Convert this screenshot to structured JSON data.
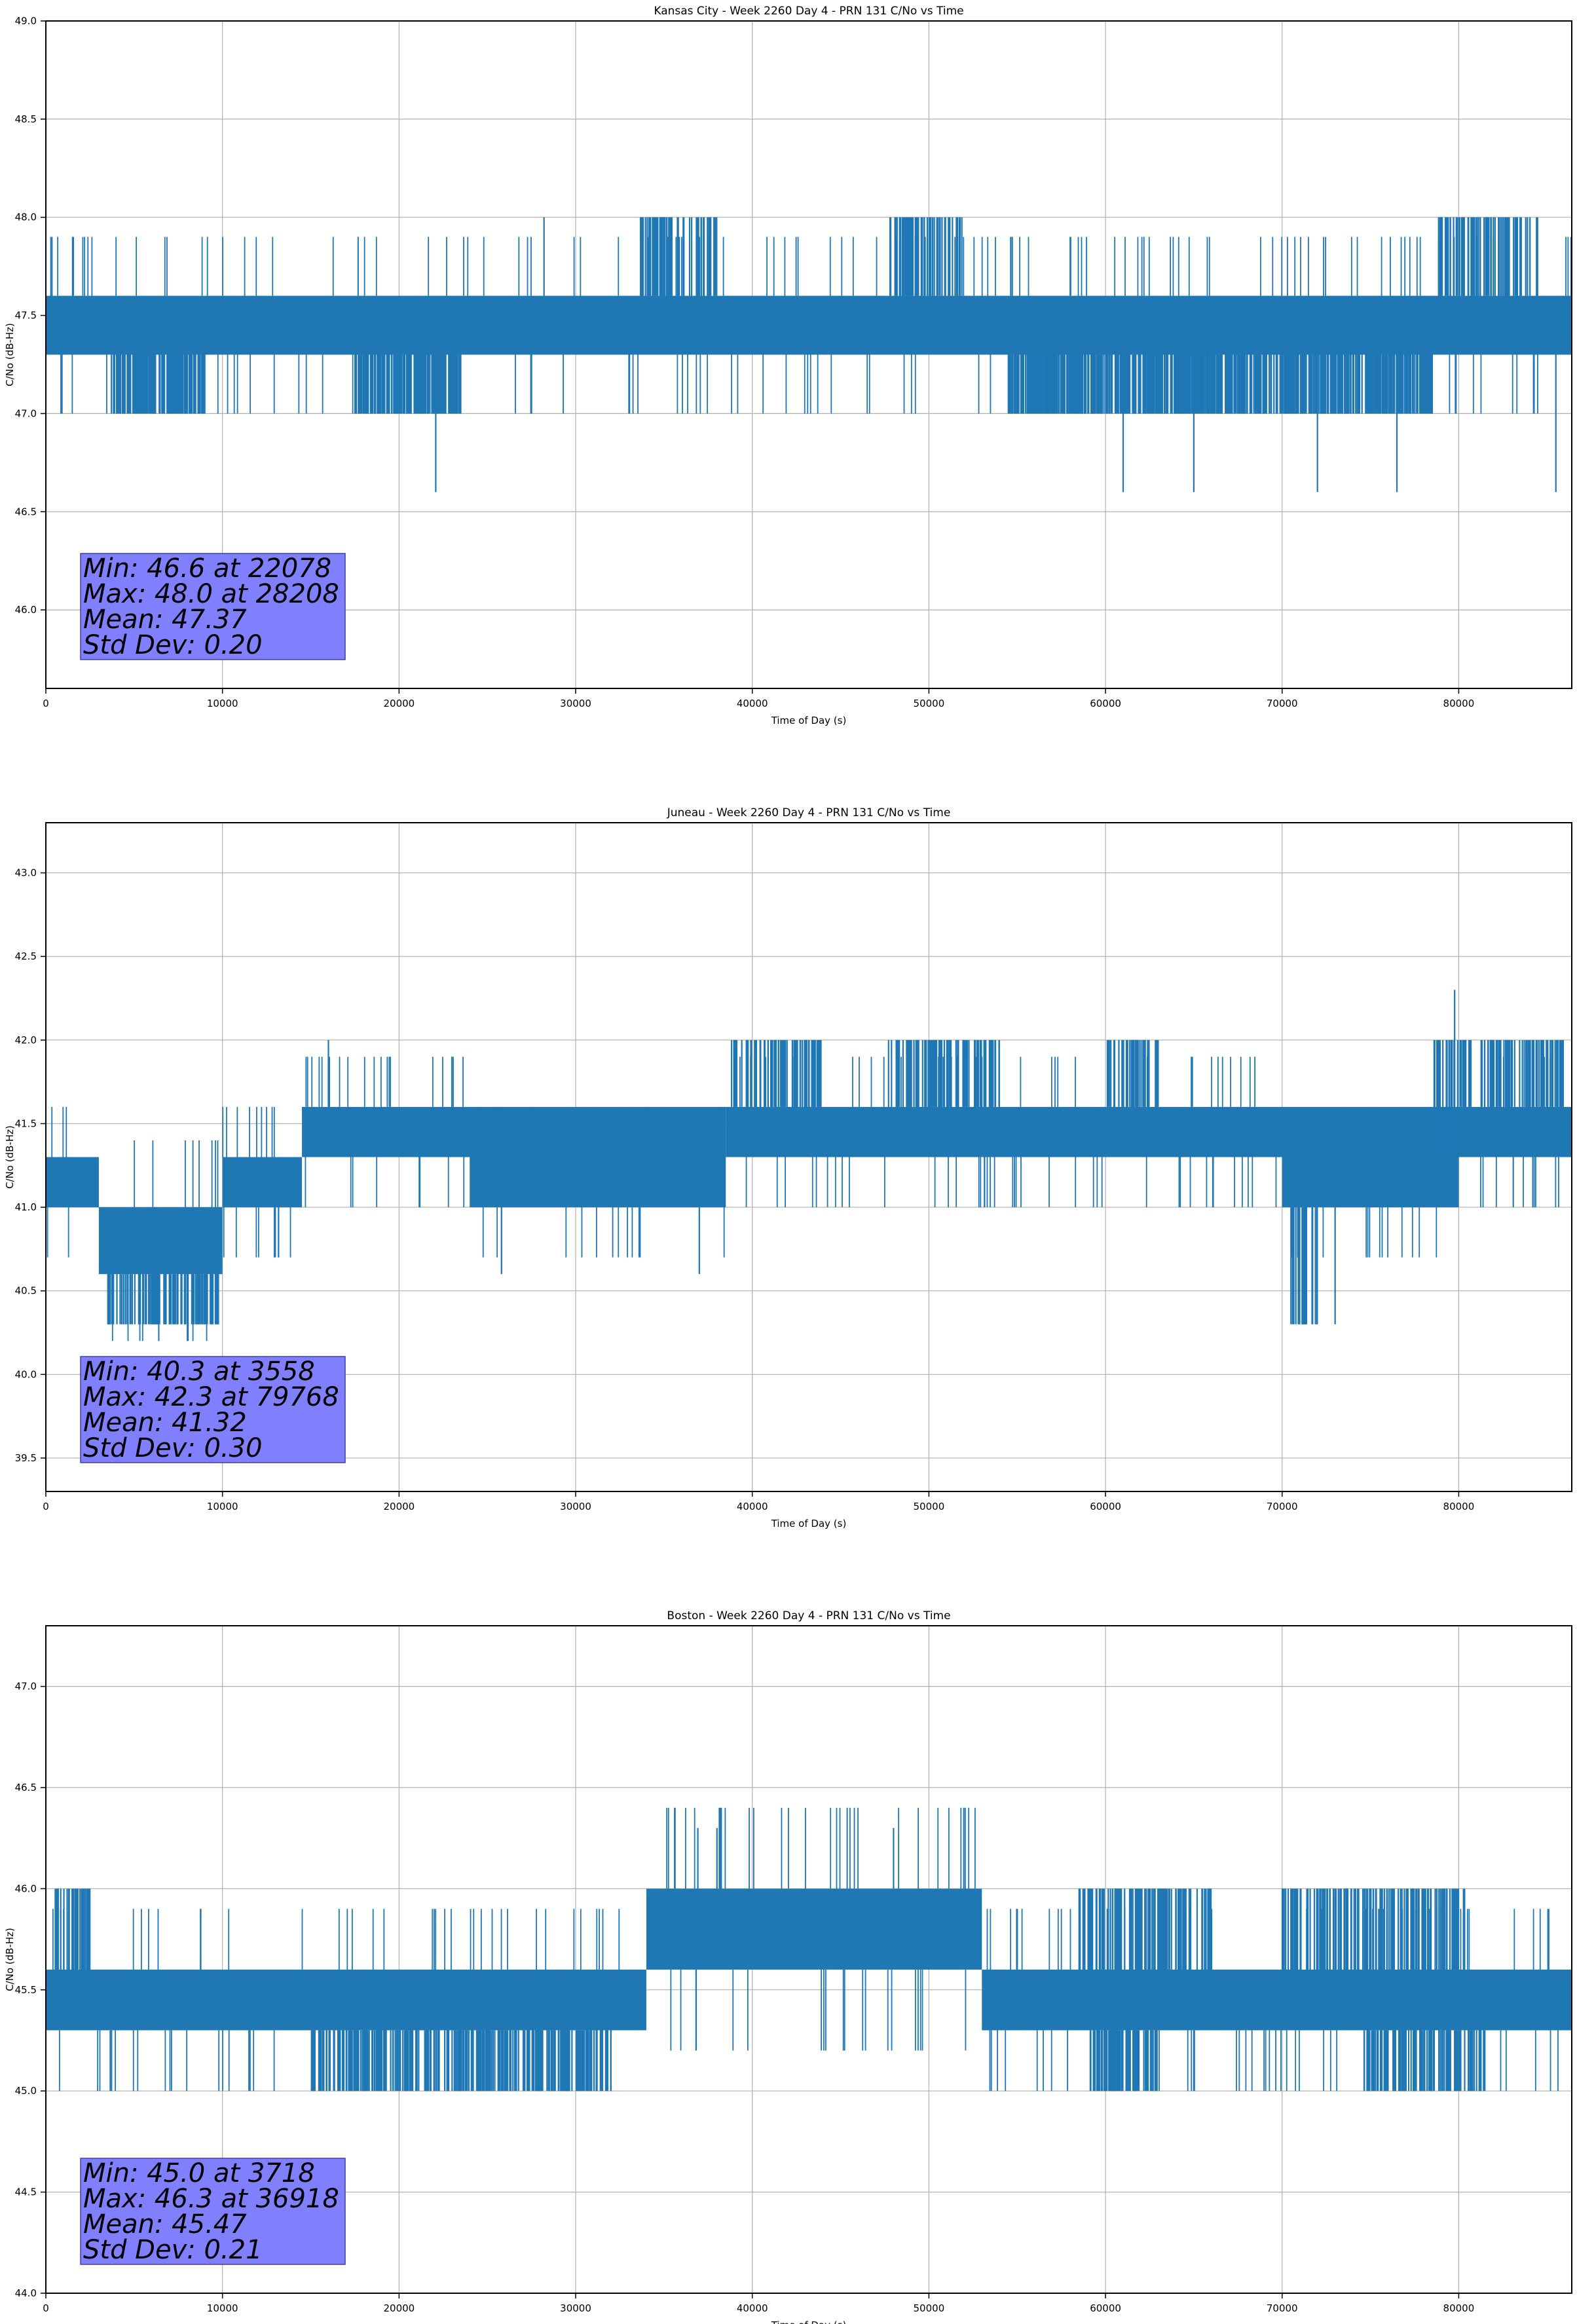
{
  "chart_data": [
    {
      "type": "line",
      "title": "Kansas City - Week 2260 Day 4 - PRN 131 C/No vs Time",
      "xlabel": "Time of Day (s)",
      "ylabel": "C/No (dB-Hz)",
      "xlim": [
        0,
        86400
      ],
      "ylim": [
        45.6,
        49.0
      ],
      "xticks": [
        0,
        10000,
        20000,
        30000,
        40000,
        50000,
        60000,
        70000,
        80000
      ],
      "yticks": [
        46.0,
        46.5,
        47.0,
        47.5,
        48.0,
        48.5,
        49.0
      ],
      "grid": true,
      "series_color": "#1f77b4",
      "band": {
        "low": 47.3,
        "high": 47.6
      },
      "lower_band_ranges": [
        [
          3700,
          9000
        ],
        [
          17500,
          23500
        ],
        [
          54500,
          78500
        ]
      ],
      "lower_band_value": 47.0,
      "upper_spike_ranges": [
        [
          33500,
          38000
        ],
        [
          47800,
          52000
        ],
        [
          78800,
          84500
        ]
      ],
      "upper_spike_value": 48.0,
      "outliers": [
        [
          22078,
          46.6
        ],
        [
          28208,
          48.0
        ],
        [
          61000,
          46.6
        ],
        [
          65000,
          46.6
        ],
        [
          72000,
          46.6
        ],
        [
          76500,
          46.6
        ],
        [
          85500,
          46.6
        ]
      ],
      "stats": {
        "min": "Min: 46.6 at 22078",
        "max": "Max: 48.0 at 28208",
        "mean": "Mean: 47.37",
        "std": "Std Dev: 0.20"
      },
      "stats_box_color": "#8080ff"
    },
    {
      "type": "line",
      "title": "Juneau - Week 2260 Day 4 - PRN 131 C/No vs Time",
      "xlabel": "Time of Day (s)",
      "ylabel": "C/No (dB-Hz)",
      "xlim": [
        0,
        86400
      ],
      "ylim": [
        39.3,
        43.3
      ],
      "xticks": [
        0,
        10000,
        20000,
        30000,
        40000,
        50000,
        60000,
        70000,
        80000
      ],
      "yticks": [
        39.5,
        40.0,
        40.5,
        41.0,
        41.5,
        42.0,
        42.5,
        43.0
      ],
      "grid": true,
      "series_color": "#1f77b4",
      "segments": [
        {
          "x0": 0,
          "x1": 3000,
          "low": 41.0,
          "high": 41.3
        },
        {
          "x0": 3000,
          "x1": 10000,
          "low": 40.6,
          "high": 41.0
        },
        {
          "x0": 10000,
          "x1": 14500,
          "low": 41.0,
          "high": 41.3
        },
        {
          "x0": 14500,
          "x1": 38500,
          "low": 41.3,
          "high": 41.6
        },
        {
          "x0": 24000,
          "x1": 38500,
          "low": 41.0,
          "high": 41.3
        },
        {
          "x0": 38500,
          "x1": 86400,
          "low": 41.3,
          "high": 41.6
        },
        {
          "x0": 70000,
          "x1": 80000,
          "low": 41.0,
          "high": 41.3
        }
      ],
      "upper_spike_ranges": [
        [
          38800,
          44000
        ],
        [
          47500,
          54000
        ],
        [
          60000,
          63000
        ],
        [
          78500,
          86000
        ]
      ],
      "upper_spike_value": 42.0,
      "lower_spike_ranges": [
        [
          3500,
          9800
        ],
        [
          70500,
          72000
        ]
      ],
      "lower_spike_value": 40.3,
      "outliers": [
        [
          3558,
          40.3
        ],
        [
          79768,
          42.3
        ],
        [
          16000,
          42.0
        ],
        [
          25800,
          40.6
        ],
        [
          37000,
          40.6
        ],
        [
          73000,
          40.3
        ]
      ],
      "stats": {
        "min": "Min: 40.3 at 3558",
        "max": "Max: 42.3 at 79768",
        "mean": "Mean: 41.32",
        "std": "Std Dev: 0.30"
      },
      "stats_box_color": "#8080ff"
    },
    {
      "type": "line",
      "title": "Boston - Week 2260 Day 4 - PRN 131 C/No vs Time",
      "xlabel": "Time of Day (s)",
      "ylabel": "C/No (dB-Hz)",
      "xlim": [
        0,
        86400
      ],
      "ylim": [
        44.0,
        47.3
      ],
      "xticks": [
        0,
        10000,
        20000,
        30000,
        40000,
        50000,
        60000,
        70000,
        80000
      ],
      "yticks": [
        44.0,
        44.5,
        45.0,
        45.5,
        46.0,
        46.5,
        47.0
      ],
      "grid": true,
      "series_color": "#1f77b4",
      "segments": [
        {
          "x0": 0,
          "x1": 34000,
          "low": 45.3,
          "high": 45.6
        },
        {
          "x0": 34000,
          "x1": 53000,
          "low": 45.6,
          "high": 46.0
        },
        {
          "x0": 53000,
          "x1": 86400,
          "low": 45.3,
          "high": 45.6
        }
      ],
      "upper_spike_ranges": [
        [
          500,
          2500
        ],
        [
          58500,
          66000
        ],
        [
          70000,
          80500
        ]
      ],
      "upper_spike_value": 46.0,
      "lower_spike_ranges": [
        [
          15000,
          32000
        ],
        [
          59000,
          63000
        ],
        [
          74500,
          81500
        ]
      ],
      "lower_spike_value": 45.0,
      "outliers": [
        [
          3718,
          45.0
        ],
        [
          36918,
          46.3
        ],
        [
          38000,
          46.3
        ],
        [
          48000,
          46.3
        ]
      ],
      "stats": {
        "min": "Min: 45.0 at 3718",
        "max": "Max: 46.3 at 36918",
        "mean": "Mean: 45.47",
        "std": "Std Dev: 0.21"
      },
      "stats_box_color": "#8080ff"
    }
  ]
}
